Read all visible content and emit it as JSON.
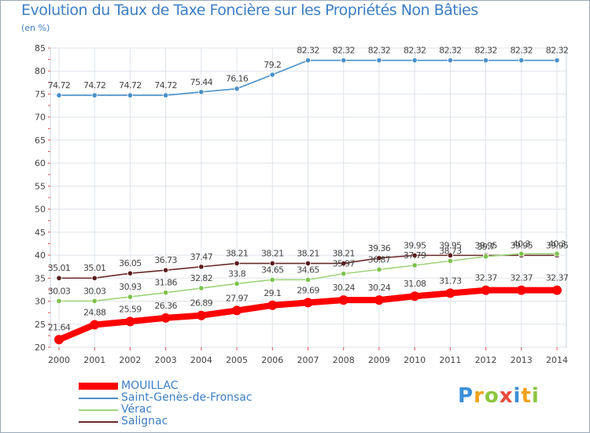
{
  "title": "Evolution du Taux de Taxe Foncière sur les Propriétés Non Bâties",
  "subtitle": "(en %)",
  "logo": {
    "text": "Proxiti",
    "letters": [
      {
        "char": "P",
        "color": "#3a8fd8"
      },
      {
        "char": "r",
        "color": "#f2a21a"
      },
      {
        "char": "o",
        "color": "#8cc63f"
      },
      {
        "char": "x",
        "color": "#e94b3c"
      },
      {
        "char": "i",
        "color": "#3a8fd8"
      },
      {
        "char": "t",
        "color": "#f2a21a"
      },
      {
        "char": "i",
        "color": "#8cc63f"
      }
    ]
  },
  "chart_data": {
    "type": "line",
    "title": "Evolution du Taux de Taxe Foncière sur les Propriétés Non Bâties",
    "ylabel": "(en %)",
    "xlabel": "",
    "ylim": [
      20,
      85
    ],
    "yticks": [
      20,
      25,
      30,
      35,
      40,
      45,
      50,
      55,
      60,
      65,
      70,
      75,
      80,
      85
    ],
    "grid": true,
    "legend_position": "bottom-left",
    "x": [
      "2000",
      "2001",
      "2002",
      "2003",
      "2004",
      "2005",
      "2006",
      "2007",
      "2008",
      "2009",
      "2010",
      "2011",
      "2012",
      "2013",
      "2014"
    ],
    "series": [
      {
        "name": "Saint-Genès-de-Fronsac",
        "color": "#4a90c8",
        "point_color": "#4a90c8",
        "values": [
          74.72,
          74.72,
          74.72,
          74.72,
          75.44,
          76.16,
          79.2,
          82.32,
          82.32,
          82.32,
          82.32,
          82.32,
          82.32,
          82.32,
          82.32
        ],
        "labels": [
          "74.72",
          "74.72",
          "74.72",
          "74.72",
          "75.44",
          "76.16",
          "79.2",
          "82.32",
          "82.32",
          "82.32",
          "82.32",
          "82.32",
          "82.32",
          "82.32",
          "82.32"
        ]
      },
      {
        "name": "Salignac",
        "color": "#6b2a2a",
        "point_color": "#5a1c1c",
        "values": [
          35.01,
          35.01,
          36.05,
          36.73,
          37.47,
          38.21,
          38.21,
          38.21,
          38.21,
          39.36,
          39.95,
          39.95,
          39.95,
          39.95,
          39.95
        ],
        "labels": [
          "35.01",
          "35.01",
          "36.05",
          "36.73",
          "37.47",
          "38.21",
          "38.21",
          "38.21",
          "38.21",
          "39.36",
          "39.95",
          "39.95",
          "39.95",
          "39.95",
          "39.95"
        ]
      },
      {
        "name": "Vérac",
        "color": "#9ed47a",
        "point_color": "#7cc24a",
        "values": [
          30.03,
          30.03,
          30.93,
          31.86,
          32.82,
          33.8,
          34.65,
          34.65,
          35.97,
          36.87,
          37.79,
          38.73,
          39.7,
          40.3,
          40.3
        ],
        "labels": [
          "30.03",
          "30.03",
          "30.93",
          "31.86",
          "32.82",
          "33.8",
          "34.65",
          "34.65",
          "35.97",
          "36.87",
          "37.79",
          "38.73",
          "39.7",
          "40.3",
          "40.3"
        ]
      },
      {
        "name": "MOUILLAC",
        "color": "#ff0000",
        "point_color": "#ff0000",
        "values": [
          21.64,
          24.88,
          25.59,
          26.36,
          26.89,
          27.97,
          29.1,
          29.69,
          30.24,
          30.24,
          31.08,
          31.73,
          32.37,
          32.37,
          32.37
        ],
        "labels": [
          "21.64",
          "24.88",
          "25.59",
          "26.36",
          "26.89",
          "27.97",
          "29.1",
          "29.69",
          "30.24",
          "30.24",
          "31.08",
          "31.73",
          "32.37",
          "32.37",
          "32.37"
        ]
      }
    ]
  },
  "legend": [
    {
      "label": "MOUILLAC",
      "color": "#ff0000"
    },
    {
      "label": "Saint-Genès-de-Fronsac",
      "color": "#4a90c8"
    },
    {
      "label": "Vérac",
      "color": "#9ed47a"
    },
    {
      "label": "Salignac",
      "color": "#6b2a2a"
    }
  ]
}
